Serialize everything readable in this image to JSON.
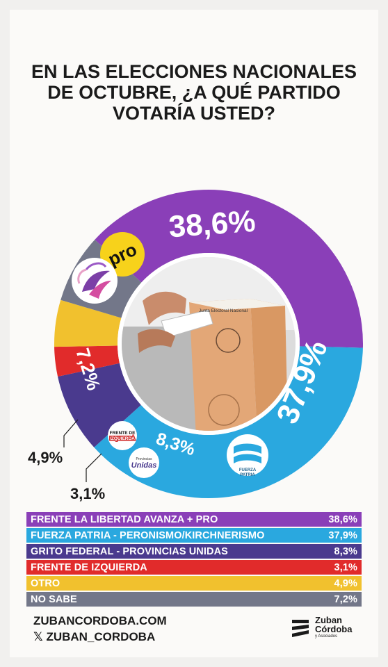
{
  "title_lines": [
    "EN LAS ELECCIONES NACIONALES",
    "DE OCTUBRE, ¿A QUÉ PARTIDO",
    "VOTARÍA USTED?"
  ],
  "chart_data": {
    "type": "pie",
    "title": "EN LAS ELECCIONES NACIONALES DE OCTUBRE, ¿A QUÉ PARTIDO VOTARÍA USTED?",
    "unit": "%",
    "slices": [
      {
        "label": "FRENTE LA LIBERTAD AVANZA + PRO",
        "value": 38.6,
        "display": "38,6%",
        "color": "#8a3fb8"
      },
      {
        "label": "FUERZA PATRIA - PERONISMO/KIRCHNERISMO",
        "value": 37.9,
        "display": "37,9%",
        "color": "#2aa8df"
      },
      {
        "label": "GRITO FEDERAL - PROVINCIAS UNIDAS",
        "value": 8.3,
        "display": "8,3%",
        "color": "#4a3a8e"
      },
      {
        "label": "FRENTE DE IZQUIERDA",
        "value": 3.1,
        "display": "3,1%",
        "color": "#e12b2b"
      },
      {
        "label": "OTRO",
        "value": 4.9,
        "display": "4,9%",
        "color": "#f1c12e"
      },
      {
        "label": "NO SABE",
        "value": 7.2,
        "display": "7,2%",
        "color": "#737789"
      }
    ]
  },
  "donut_badges": {
    "pro": "pro",
    "fuerza_patria_line1": "FUERZA",
    "fuerza_patria_line2": "PATRIA",
    "frente_izq_line1": "FRENTE DE",
    "frente_izq_line2": "IZQUIERDA",
    "provincias_line1": "Provincias",
    "provincias_line2": "Unidas"
  },
  "photo": {
    "ballot_box_label": "Junta Electoral Nacional"
  },
  "footer": {
    "website": "ZUBANCORDOBA.COM",
    "x_glyph": "𝕏",
    "handle": "ZUBAN_CORDOBA",
    "logo_line1": "Zuban",
    "logo_line2": "Córdoba",
    "logo_line3": "y Asociados"
  }
}
